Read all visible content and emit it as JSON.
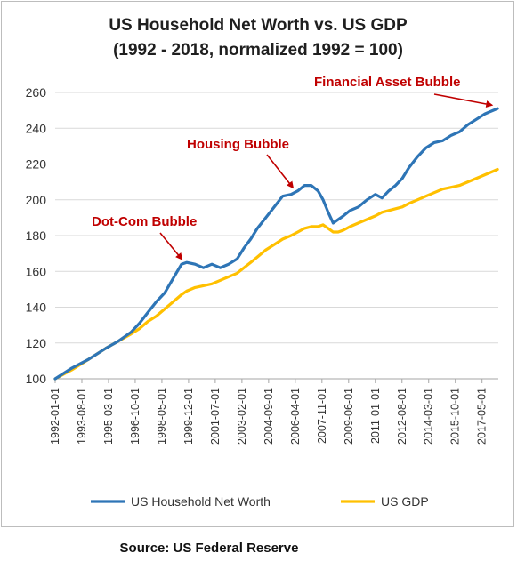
{
  "chart_data": {
    "type": "line",
    "title": "US Household Net Worth vs. US GDP",
    "subtitle": "(1992 - 2018, normalized 1992 = 100)",
    "xlabel": "",
    "ylabel": "",
    "ylim": [
      100,
      260
    ],
    "yticks": [
      100,
      120,
      140,
      160,
      180,
      200,
      220,
      240,
      260
    ],
    "xticks": [
      "1992-01-01",
      "1993-08-01",
      "1995-03-01",
      "1996-10-01",
      "1998-05-01",
      "1999-12-01",
      "2001-07-01",
      "2003-02-01",
      "2004-09-01",
      "2006-04-01",
      "2007-11-01",
      "2009-06-01",
      "2011-01-01",
      "2012-08-01",
      "2014-03-01",
      "2015-10-01",
      "2017-05-01"
    ],
    "grid": "horizontal",
    "legend": "bottom",
    "x": [
      1992.0,
      1993.0,
      1994.0,
      1995.0,
      1995.75,
      1996.5,
      1997.0,
      1997.5,
      1998.0,
      1998.5,
      1999.0,
      1999.5,
      1999.8,
      2000.3,
      2000.8,
      2001.3,
      2001.8,
      2002.3,
      2002.8,
      2003.2,
      2003.6,
      2004.0,
      2004.5,
      2005.0,
      2005.5,
      2006.0,
      2006.4,
      2006.8,
      2007.2,
      2007.6,
      2007.9,
      2008.2,
      2008.5,
      2008.8,
      2009.1,
      2009.5,
      2010.0,
      2010.5,
      2011.0,
      2011.4,
      2011.8,
      2012.2,
      2012.6,
      2013.0,
      2013.5,
      2014.0,
      2014.5,
      2015.0,
      2015.5,
      2016.0,
      2016.5,
      2017.0,
      2017.5,
      2018.0,
      2018.25
    ],
    "series": [
      {
        "name": "US Household Net Worth",
        "color": "#2e75b6",
        "values": [
          100,
          106,
          111,
          117,
          121,
          126,
          131,
          137,
          143,
          148,
          156,
          164,
          165,
          164,
          162,
          164,
          162,
          164,
          167,
          173,
          178,
          184,
          190,
          196,
          202,
          203,
          205,
          208,
          208,
          205,
          200,
          193,
          187,
          189,
          191,
          194,
          196,
          200,
          203,
          201,
          205,
          208,
          212,
          218,
          224,
          229,
          232,
          233,
          236,
          238,
          242,
          245,
          248,
          250,
          251
        ]
      },
      {
        "name": "US GDP",
        "color": "#ffc000",
        "values": [
          100,
          105,
          111,
          117,
          121,
          125,
          128,
          132,
          135,
          139,
          143,
          147,
          149,
          151,
          152,
          153,
          155,
          157,
          159,
          162,
          165,
          168,
          172,
          175,
          178,
          180,
          182,
          184,
          185,
          185,
          186,
          184,
          182,
          182,
          183,
          185,
          187,
          189,
          191,
          193,
          194,
          195,
          196,
          198,
          200,
          202,
          204,
          206,
          207,
          208,
          210,
          212,
          214,
          216,
          217
        ]
      }
    ],
    "annotations": [
      {
        "text": "Dot-Com Bubble",
        "x": 1999.5,
        "y": 164
      },
      {
        "text": "Housing Bubble",
        "x": 2006.2,
        "y": 204
      },
      {
        "text": "Financial Asset Bubble",
        "x": 2018.0,
        "y": 250
      }
    ],
    "source": "Source: US Federal Reserve"
  }
}
